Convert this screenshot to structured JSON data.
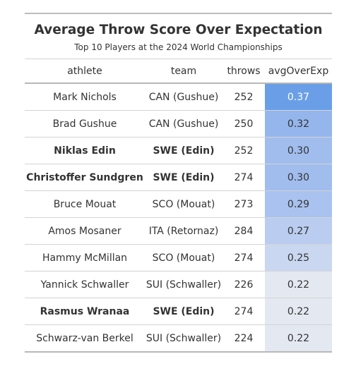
{
  "title": "Average Throw Score Over Expectation",
  "subtitle": "Top 10 Players at the 2024 World Championships",
  "columns": {
    "athlete": "athlete",
    "team": "team",
    "throws": "throws",
    "value": "avgOverExp"
  },
  "rows": [
    {
      "athlete": "Mark Nichols",
      "team": "CAN (Gushue)",
      "throws": "252",
      "value": "0.37",
      "bold": false,
      "fill": "#6a9fe8",
      "text_color": "#ffffff"
    },
    {
      "athlete": "Brad Gushue",
      "team": "CAN (Gushue)",
      "throws": "250",
      "value": "0.32",
      "bold": false,
      "fill": "#95b6ec",
      "text_color": "#333333"
    },
    {
      "athlete": "Niklas Edin",
      "team": "SWE (Edin)",
      "throws": "252",
      "value": "0.30",
      "bold": true,
      "fill": "#a1bdee",
      "text_color": "#333333"
    },
    {
      "athlete": "Christoffer Sundgren",
      "team": "SWE (Edin)",
      "throws": "274",
      "value": "0.30",
      "bold": true,
      "fill": "#a1bdee",
      "text_color": "#333333"
    },
    {
      "athlete": "Bruce Mouat",
      "team": "SCO (Mouat)",
      "throws": "273",
      "value": "0.29",
      "bold": false,
      "fill": "#a9c2ef",
      "text_color": "#333333"
    },
    {
      "athlete": "Amos Mosaner",
      "team": "ITA (Retornaz)",
      "throws": "284",
      "value": "0.27",
      "bold": false,
      "fill": "#bacdf0",
      "text_color": "#333333"
    },
    {
      "athlete": "Hammy McMillan",
      "team": "SCO (Mouat)",
      "throws": "274",
      "value": "0.25",
      "bold": false,
      "fill": "#cad7f1",
      "text_color": "#333333"
    },
    {
      "athlete": "Yannick Schwaller",
      "team": "SUI (Schwaller)",
      "throws": "226",
      "value": "0.22",
      "bold": false,
      "fill": "#e4e8f1",
      "text_color": "#333333"
    },
    {
      "athlete": "Rasmus Wranaa",
      "team": "SWE (Edin)",
      "throws": "274",
      "value": "0.22",
      "bold": true,
      "fill": "#e4e8f1",
      "text_color": "#333333"
    },
    {
      "athlete": "Schwarz-van Berkel",
      "team": "SUI (Schwaller)",
      "throws": "224",
      "value": "0.22",
      "bold": false,
      "fill": "#e4e8f1",
      "text_color": "#333333"
    }
  ]
}
